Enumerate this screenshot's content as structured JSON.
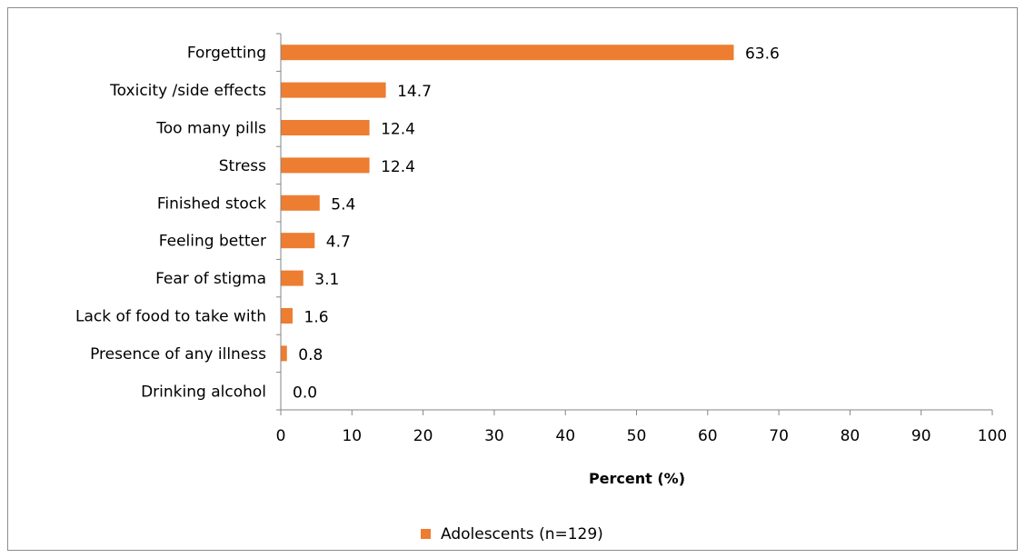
{
  "chart_data": {
    "type": "bar",
    "orientation": "horizontal",
    "categories": [
      "Forgetting",
      "Toxicity /side effects",
      "Too many pills",
      "Stress",
      "Finished stock",
      "Feeling better",
      "Fear of stigma",
      "Lack of food to take with",
      "Presence of any illness",
      "Drinking alcohol"
    ],
    "series": [
      {
        "name": "Adolescents (n=129)",
        "values": [
          63.6,
          14.7,
          12.4,
          12.4,
          5.4,
          4.7,
          3.1,
          1.6,
          0.8,
          0.0
        ],
        "labels": [
          "63.6",
          "14.7",
          "12.4",
          "12.4",
          "5.4",
          "4.7",
          "3.1",
          "1.6",
          "0.8",
          "0.0"
        ],
        "color": "#ed7d31"
      }
    ],
    "xlabel": "Percent (%)",
    "xlim": [
      0,
      100
    ],
    "xticks": [
      0,
      10,
      20,
      30,
      40,
      50,
      60,
      70,
      80,
      90,
      100
    ],
    "grid": false,
    "legend_position": "bottom"
  }
}
